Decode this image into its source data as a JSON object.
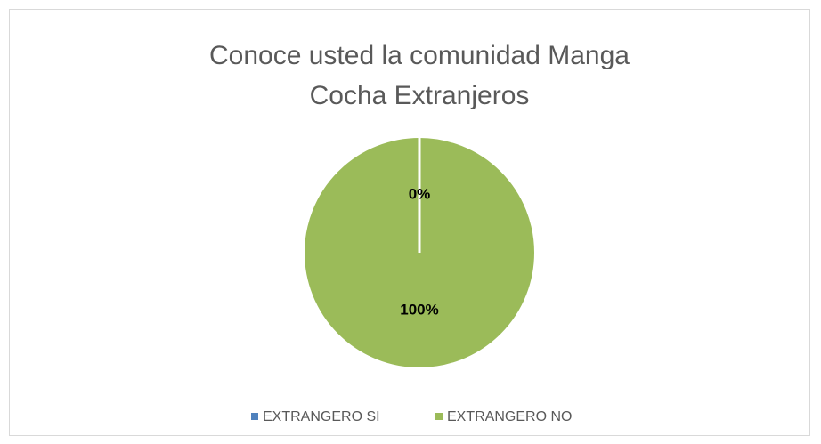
{
  "chart_data": {
    "type": "pie",
    "title": "Conoce usted la comunidad Manga Cocha Extranjeros",
    "categories": [
      "EXTRANGERO SI",
      "EXTRANGERO NO"
    ],
    "values": [
      0,
      100
    ],
    "value_labels": [
      "0%",
      "100%"
    ],
    "colors": [
      "#4f81bd",
      "#9bbb59"
    ],
    "legend": "bottom"
  }
}
